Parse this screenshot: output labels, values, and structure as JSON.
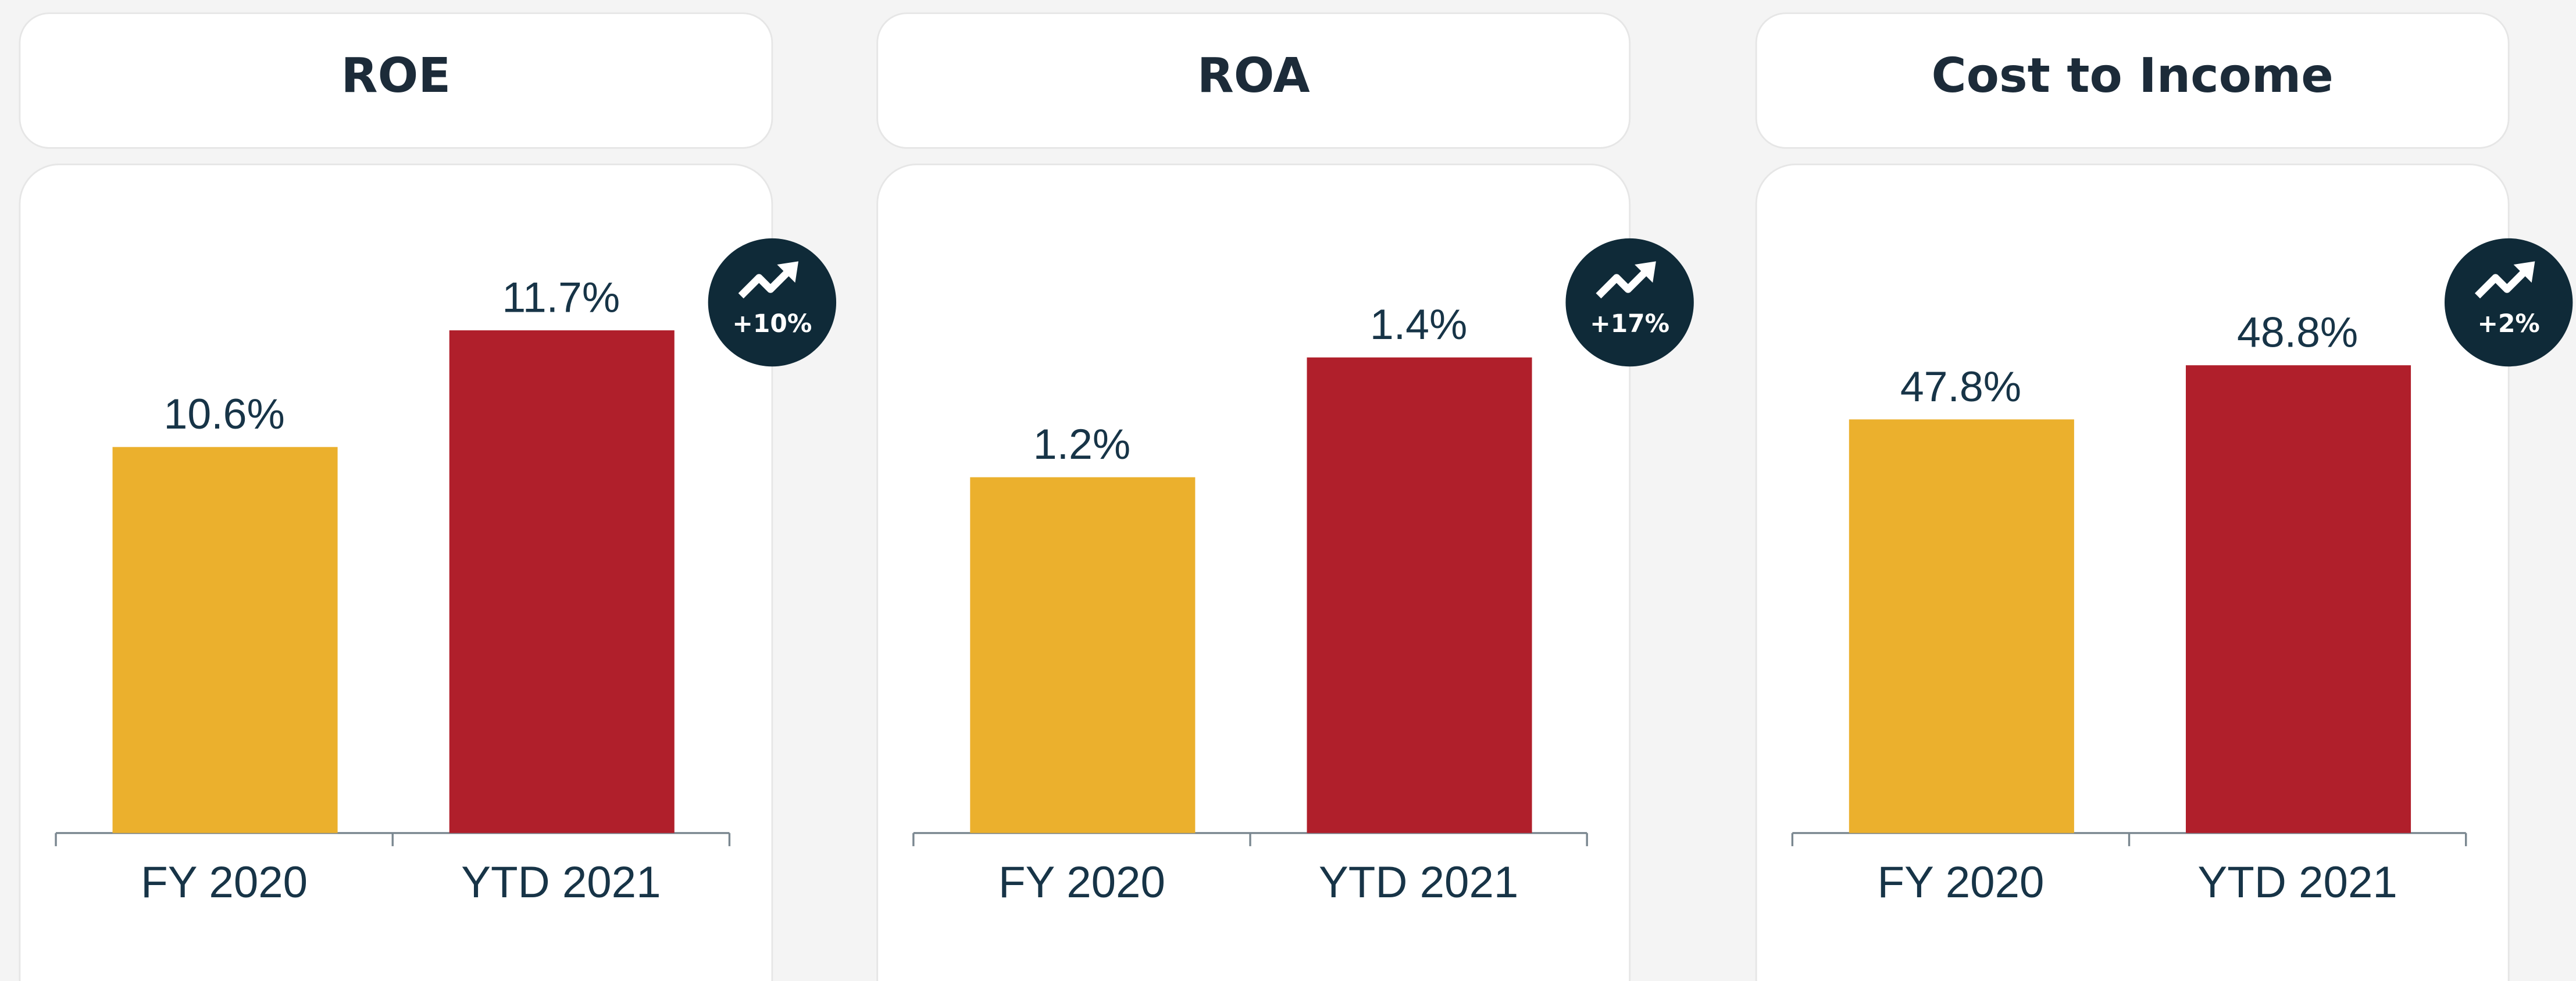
{
  "chart_data": [
    {
      "type": "bar",
      "title": "ROE",
      "categories": [
        "FY 2020",
        "YTD 2021"
      ],
      "values": [
        10.6,
        11.7
      ],
      "value_labels": [
        "10.6%",
        "11.7%"
      ],
      "colors": [
        "#ebb02d",
        "#b01f2b"
      ],
      "ylim": [
        6.96,
        12.8
      ],
      "annotation": "+10%"
    },
    {
      "type": "bar",
      "title": "ROA",
      "categories": [
        "FY 2020",
        "YTD 2021"
      ],
      "values": [
        1.2,
        1.4
      ],
      "value_labels": [
        "1.2%",
        "1.4%"
      ],
      "colors": [
        "#ebb02d",
        "#b01f2b"
      ],
      "ylim": [
        0.606,
        1.64
      ],
      "annotation": "+17%"
    },
    {
      "type": "bar",
      "title": "Cost to Income",
      "categories": [
        "FY 2020",
        "YTD 2021"
      ],
      "values": [
        47.8,
        48.8
      ],
      "value_labels": [
        "47.8%",
        "48.8%"
      ],
      "colors": [
        "#ebb02d",
        "#b01f2b"
      ],
      "ylim": [
        40.16,
        51.6
      ],
      "annotation": "+2%"
    }
  ]
}
